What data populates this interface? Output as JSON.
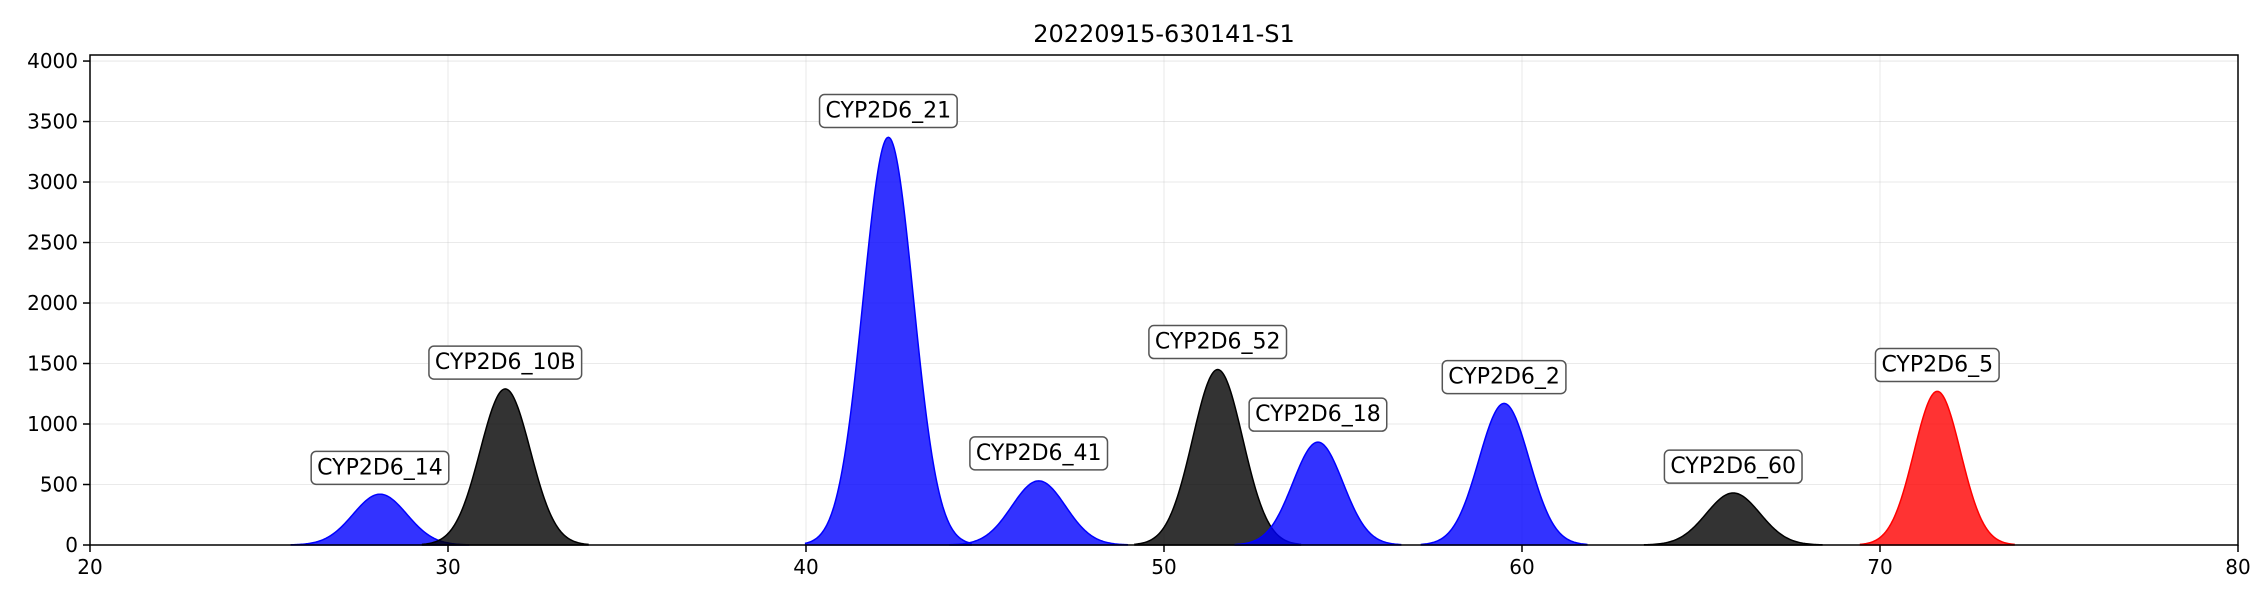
{
  "chart_data": {
    "type": "area",
    "title": "20220915-630141-S1",
    "xlabel": "",
    "ylabel": "",
    "xlim": [
      20,
      80
    ],
    "ylim": [
      0,
      4050
    ],
    "x_ticks": [
      20,
      30,
      40,
      50,
      60,
      70,
      80
    ],
    "y_ticks": [
      0,
      500,
      1000,
      1500,
      2000,
      2500,
      3000,
      3500,
      4000
    ],
    "grid": true,
    "legend": "none",
    "colors": {
      "blue": "#0000ff",
      "black": "#000000",
      "red": "#ff0000"
    },
    "peaks": [
      {
        "label": "CYP2D6_14",
        "center": 28.1,
        "height": 420,
        "width": 0.75,
        "color": "blue",
        "label_y": 650
      },
      {
        "label": "CYP2D6_10B",
        "center": 31.6,
        "height": 1290,
        "width": 0.7,
        "color": "black",
        "label_y": 1520
      },
      {
        "label": "CYP2D6_21",
        "center": 42.3,
        "height": 3370,
        "width": 0.7,
        "color": "blue",
        "label_y": 3600
      },
      {
        "label": "CYP2D6_41",
        "center": 46.5,
        "height": 530,
        "width": 0.75,
        "color": "blue",
        "label_y": 770
      },
      {
        "label": "CYP2D6_52",
        "center": 51.5,
        "height": 1450,
        "width": 0.7,
        "color": "black",
        "label_y": 1690
      },
      {
        "label": "CYP2D6_18",
        "center": 54.3,
        "height": 850,
        "width": 0.7,
        "color": "blue",
        "label_y": 1090
      },
      {
        "label": "CYP2D6_2",
        "center": 59.5,
        "height": 1170,
        "width": 0.7,
        "color": "blue",
        "label_y": 1400
      },
      {
        "label": "CYP2D6_60",
        "center": 65.9,
        "height": 430,
        "width": 0.75,
        "color": "black",
        "label_y": 660
      },
      {
        "label": "CYP2D6_5",
        "center": 71.6,
        "height": 1270,
        "width": 0.65,
        "color": "red",
        "label_y": 1500
      }
    ]
  }
}
